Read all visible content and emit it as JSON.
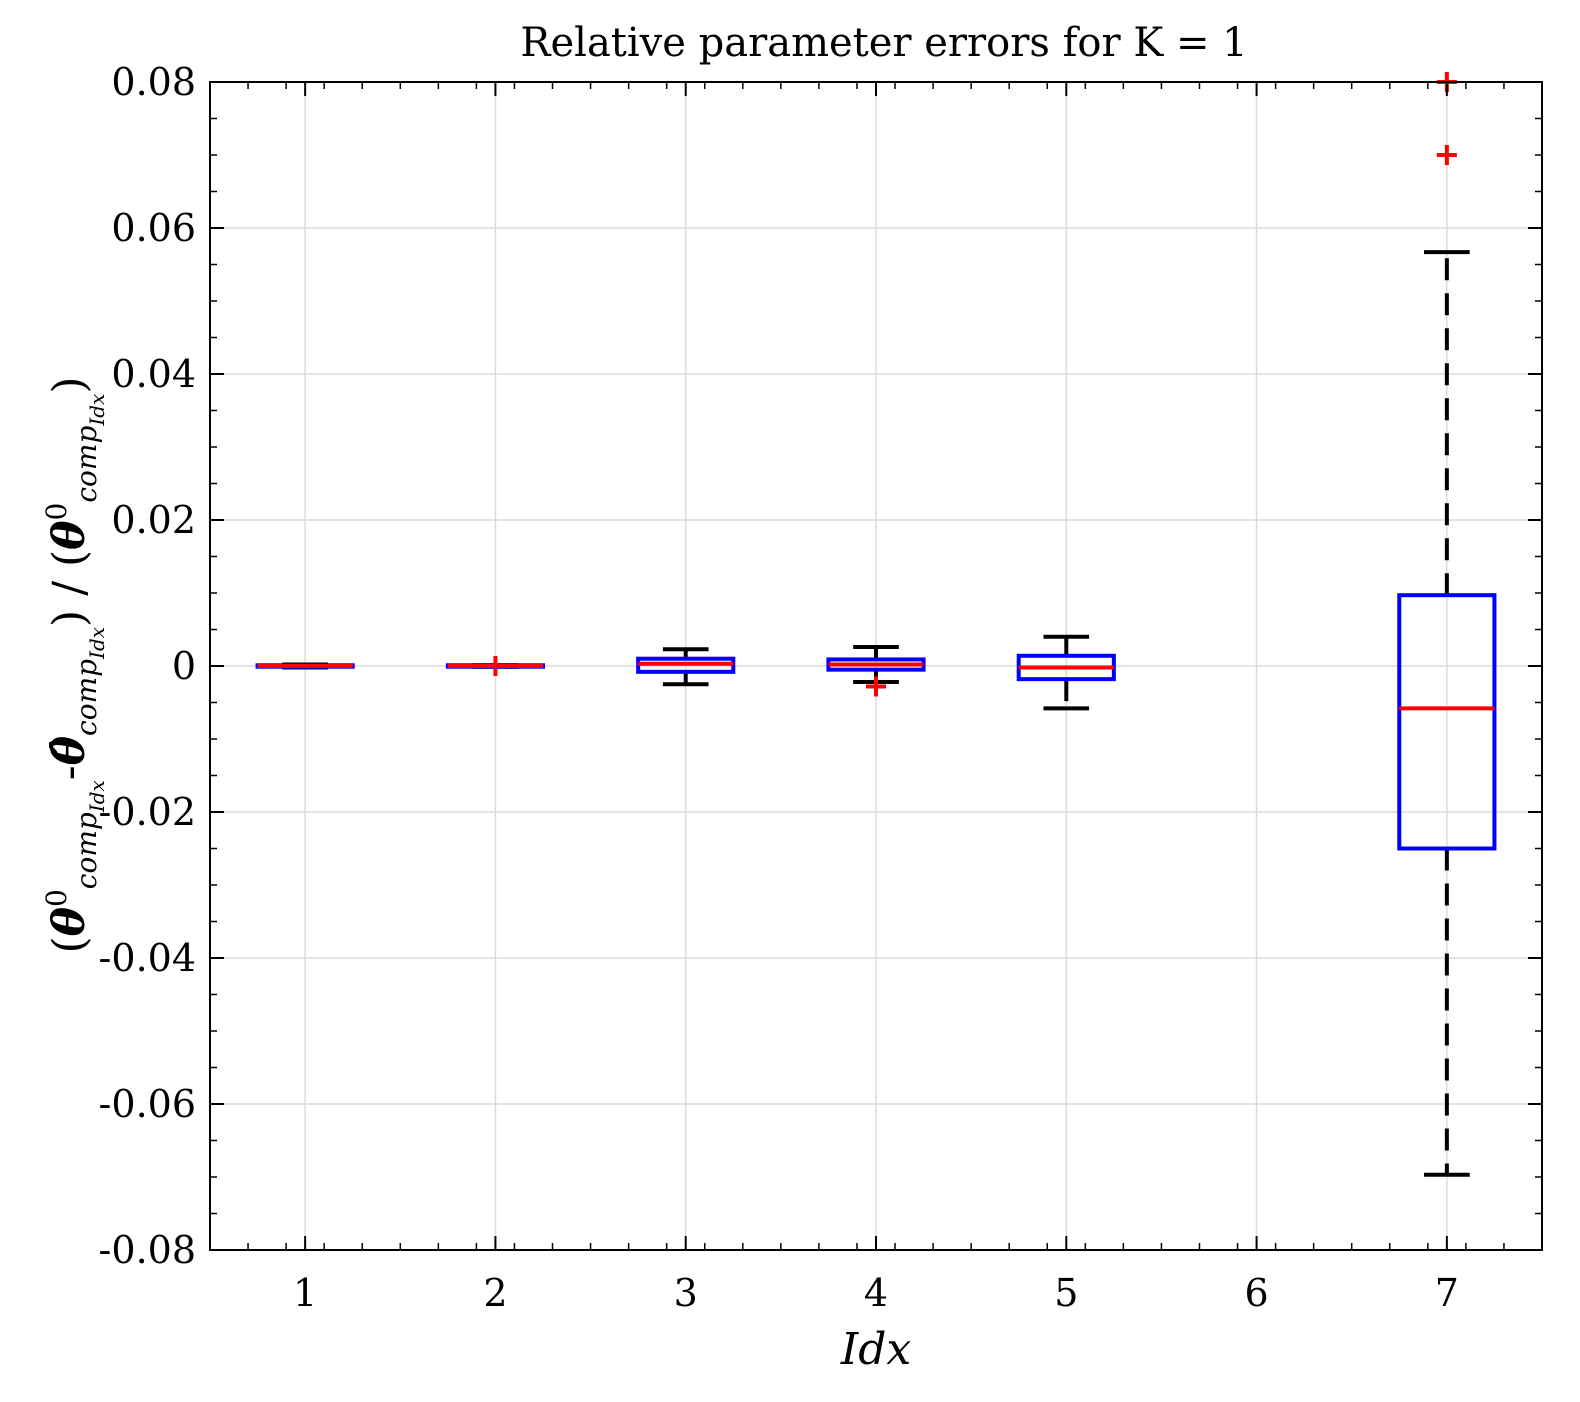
{
  "chart_data": {
    "type": "boxplot",
    "title": "Relative parameter errors for K = 1",
    "xlabel": "Idx",
    "ylabel": {
      "open_paren": "(",
      "theta": "θ",
      "sup_zero": "0",
      "sub_comp": "comp",
      "sub_idx": "Idx",
      "minus": "-",
      "theta_hat": "θ̂",
      "close_slash_open": ") / (",
      "close_paren": ")"
    },
    "ylim": [
      -0.08,
      0.08
    ],
    "xlim": [
      0.5,
      7.5
    ],
    "y_ticks": [
      {
        "value": -0.08,
        "label": "-0.08"
      },
      {
        "value": -0.06,
        "label": "-0.06"
      },
      {
        "value": -0.04,
        "label": "-0.04"
      },
      {
        "value": -0.02,
        "label": "-0.02"
      },
      {
        "value": 0,
        "label": "0"
      },
      {
        "value": 0.02,
        "label": "0.02"
      },
      {
        "value": 0.04,
        "label": "0.04"
      },
      {
        "value": 0.06,
        "label": "0.06"
      },
      {
        "value": 0.08,
        "label": "0.08"
      }
    ],
    "x_ticks": [
      {
        "value": 1,
        "label": "1"
      },
      {
        "value": 2,
        "label": "2"
      },
      {
        "value": 3,
        "label": "3"
      },
      {
        "value": 4,
        "label": "4"
      },
      {
        "value": 5,
        "label": "5"
      },
      {
        "value": 6,
        "label": "6"
      },
      {
        "value": 7,
        "label": "7"
      }
    ],
    "grid": true,
    "colors": {
      "box": "#0000ff",
      "median": "#ff0000",
      "whisker": "#000000",
      "outlier": "#ff0000",
      "grid": "#dcdcdc"
    },
    "boxes": [
      {
        "idx": 1,
        "q1": -0.0001,
        "median": 0.0,
        "q3": 0.0001,
        "whisker_low": -0.0002,
        "whisker_high": 0.0002,
        "outliers": []
      },
      {
        "idx": 2,
        "q1": -0.0001,
        "median": 0.0,
        "q3": 0.0001,
        "whisker_low": -0.0001,
        "whisker_high": 0.0001,
        "outliers": [
          0.0
        ]
      },
      {
        "idx": 3,
        "q1": -0.0008,
        "median": 0.0003,
        "q3": 0.001,
        "whisker_low": -0.0025,
        "whisker_high": 0.0023,
        "outliers": []
      },
      {
        "idx": 4,
        "q1": -0.0005,
        "median": 0.0002,
        "q3": 0.0009,
        "whisker_low": -0.0022,
        "whisker_high": 0.0026,
        "outliers": [
          -0.0028
        ]
      },
      {
        "idx": 5,
        "q1": -0.0018,
        "median": -0.0002,
        "q3": 0.0014,
        "whisker_low": -0.0058,
        "whisker_high": 0.004,
        "outliers": []
      },
      {
        "idx": 7,
        "q1": -0.025,
        "median": -0.0058,
        "q3": 0.0097,
        "whisker_low": -0.0697,
        "whisker_high": 0.0567,
        "outliers": [
          0.07,
          0.08
        ]
      }
    ]
  }
}
